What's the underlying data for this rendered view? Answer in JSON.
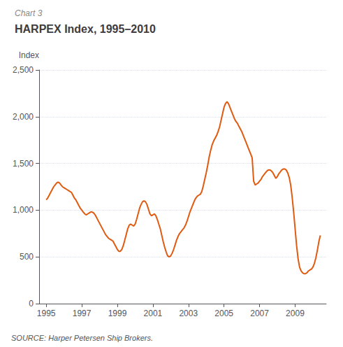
{
  "chart_data": {
    "type": "line",
    "title": "HARPEX Index, 1995–2010",
    "subtitle": "Chart 3",
    "ylabel": "Index",
    "annotations": [
      "SOURCE: Harper Petersen Ship Brokers."
    ],
    "color": "#E05A10",
    "grid": true,
    "xlim": [
      1994.6,
      2010.75
    ],
    "xticks": [
      1995,
      1997,
      1999,
      2001,
      2003,
      2005,
      2007,
      2009
    ],
    "ylim": [
      0,
      2500
    ],
    "yticks": [
      0,
      500,
      {
        "value": 1000,
        "label": "1,000"
      },
      {
        "value": 1500,
        "label": "1,500"
      },
      {
        "value": 2000,
        "label": "2,000"
      },
      {
        "value": 2500,
        "label": "2,500"
      }
    ],
    "x": [
      1995.0,
      1995.083,
      1995.167,
      1995.25,
      1995.333,
      1995.417,
      1995.5,
      1995.583,
      1995.667,
      1995.75,
      1995.833,
      1995.917,
      1996.0,
      1996.083,
      1996.167,
      1996.25,
      1996.333,
      1996.417,
      1996.5,
      1996.583,
      1996.667,
      1996.75,
      1996.833,
      1996.917,
      1997.0,
      1997.083,
      1997.167,
      1997.25,
      1997.333,
      1997.417,
      1997.5,
      1997.583,
      1997.667,
      1997.75,
      1997.833,
      1997.917,
      1998.0,
      1998.083,
      1998.167,
      1998.25,
      1998.333,
      1998.417,
      1998.5,
      1998.583,
      1998.667,
      1998.75,
      1998.833,
      1998.917,
      1999.0,
      1999.083,
      1999.167,
      1999.25,
      1999.333,
      1999.417,
      1999.5,
      1999.583,
      1999.667,
      1999.75,
      1999.833,
      1999.917,
      2000.0,
      2000.083,
      2000.167,
      2000.25,
      2000.333,
      2000.417,
      2000.5,
      2000.583,
      2000.667,
      2000.75,
      2000.833,
      2000.917,
      2001.0,
      2001.083,
      2001.167,
      2001.25,
      2001.333,
      2001.417,
      2001.5,
      2001.583,
      2001.667,
      2001.75,
      2001.833,
      2001.917,
      2002.0,
      2002.083,
      2002.167,
      2002.25,
      2002.333,
      2002.417,
      2002.5,
      2002.583,
      2002.667,
      2002.75,
      2002.833,
      2002.917,
      2003.0,
      2003.083,
      2003.167,
      2003.25,
      2003.333,
      2003.417,
      2003.5,
      2003.583,
      2003.667,
      2003.75,
      2003.833,
      2003.917,
      2004.0,
      2004.083,
      2004.167,
      2004.25,
      2004.333,
      2004.417,
      2004.5,
      2004.583,
      2004.667,
      2004.75,
      2004.833,
      2004.917,
      2005.0,
      2005.083,
      2005.167,
      2005.25,
      2005.333,
      2005.417,
      2005.5,
      2005.583,
      2005.667,
      2005.75,
      2005.833,
      2005.917,
      2006.0,
      2006.083,
      2006.167,
      2006.25,
      2006.333,
      2006.417,
      2006.5,
      2006.583,
      2006.667,
      2006.75,
      2006.833,
      2006.917,
      2007.0,
      2007.083,
      2007.167,
      2007.25,
      2007.333,
      2007.417,
      2007.5,
      2007.583,
      2007.667,
      2007.75,
      2007.833,
      2007.917,
      2008.0,
      2008.083,
      2008.167,
      2008.25,
      2008.333,
      2008.417,
      2008.5,
      2008.583,
      2008.667,
      2008.75,
      2008.833,
      2008.917,
      2009.0,
      2009.083,
      2009.167,
      2009.25,
      2009.333,
      2009.417,
      2009.5,
      2009.583,
      2009.667,
      2009.75,
      2009.833,
      2009.917,
      2010.0,
      2010.083,
      2010.167,
      2010.25,
      2010.333,
      2010.417
    ],
    "values": [
      1110,
      1130,
      1160,
      1190,
      1220,
      1250,
      1270,
      1290,
      1300,
      1290,
      1270,
      1250,
      1240,
      1230,
      1220,
      1210,
      1200,
      1190,
      1160,
      1130,
      1110,
      1080,
      1050,
      1020,
      1000,
      980,
      960,
      950,
      960,
      970,
      980,
      980,
      970,
      950,
      920,
      890,
      860,
      830,
      800,
      770,
      740,
      720,
      700,
      690,
      680,
      670,
      640,
      610,
      580,
      560,
      560,
      580,
      620,
      680,
      740,
      800,
      840,
      850,
      840,
      830,
      850,
      900,
      960,
      1020,
      1060,
      1090,
      1100,
      1090,
      1060,
      1010,
      960,
      940,
      950,
      960,
      940,
      900,
      850,
      800,
      730,
      660,
      600,
      550,
      510,
      500,
      510,
      540,
      580,
      630,
      680,
      720,
      750,
      770,
      790,
      810,
      840,
      880,
      930,
      980,
      1020,
      1060,
      1100,
      1130,
      1150,
      1160,
      1170,
      1200,
      1260,
      1330,
      1400,
      1480,
      1570,
      1640,
      1700,
      1740,
      1770,
      1800,
      1840,
      1890,
      1960,
      2030,
      2100,
      2140,
      2160,
      2140,
      2100,
      2060,
      2020,
      1980,
      1950,
      1930,
      1900,
      1870,
      1840,
      1800,
      1760,
      1720,
      1680,
      1640,
      1600,
      1560,
      1310,
      1270,
      1280,
      1290,
      1310,
      1330,
      1360,
      1380,
      1400,
      1420,
      1430,
      1430,
      1420,
      1400,
      1370,
      1340,
      1360,
      1390,
      1410,
      1430,
      1440,
      1440,
      1430,
      1400,
      1350,
      1270,
      1140,
      980,
      800,
      620,
      480,
      390,
      350,
      330,
      320,
      320,
      330,
      350,
      360,
      370,
      390,
      430,
      490,
      570,
      660,
      730
    ]
  }
}
